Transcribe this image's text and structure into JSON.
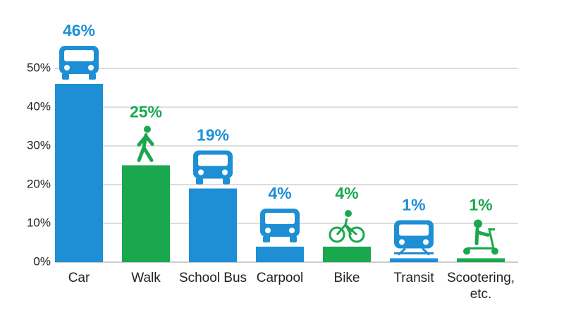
{
  "chart_data": {
    "type": "bar",
    "categories": [
      "Car",
      "Walk",
      "School Bus",
      "Carpool",
      "Bike",
      "Transit",
      "Scootering, etc."
    ],
    "values": [
      46,
      25,
      19,
      4,
      4,
      1,
      1
    ],
    "value_labels": [
      "46%",
      "25%",
      "19%",
      "4%",
      "4%",
      "1%",
      "1%"
    ],
    "colors": [
      "#1e8fd5",
      "#1aa84f",
      "#1e8fd5",
      "#1e8fd5",
      "#1aa84f",
      "#1e8fd5",
      "#1aa84f"
    ],
    "ylim": [
      0,
      50
    ],
    "yticks": [
      {
        "value": 0,
        "label": "0%"
      },
      {
        "value": 10,
        "label": "10%"
      },
      {
        "value": 20,
        "label": "20%"
      },
      {
        "value": 30,
        "label": "30%"
      },
      {
        "value": 40,
        "label": "40%"
      },
      {
        "value": 50,
        "label": "50%"
      }
    ],
    "grid": true
  }
}
